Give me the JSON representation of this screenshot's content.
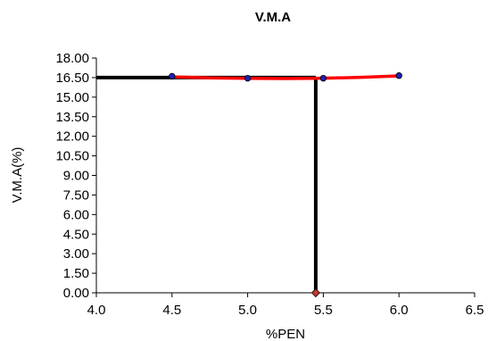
{
  "chart_data": {
    "type": "scatter",
    "title": "V.M.A",
    "xlabel": "%PEN",
    "ylabel": "V.M.A(%)",
    "xlim": [
      4.0,
      6.5
    ],
    "ylim": [
      0.0,
      18.0
    ],
    "x_ticks": [
      "4.0",
      "4.5",
      "5.0",
      "5.5",
      "6.0",
      "6.5"
    ],
    "y_ticks": [
      "0.00",
      "1.50",
      "3.00",
      "4.50",
      "6.00",
      "7.50",
      "9.00",
      "10.50",
      "12.00",
      "13.50",
      "15.00",
      "16.50",
      "18.00"
    ],
    "grid": false,
    "legend": "none",
    "series": [
      {
        "kind": "points",
        "marker": "circle",
        "color": "#1f1fb4",
        "x": [
          4.5,
          5.0,
          5.5,
          6.0
        ],
        "y": [
          16.6,
          16.45,
          16.45,
          16.65
        ]
      },
      {
        "kind": "fit-curve",
        "color": "#ff0000",
        "x": [
          4.5,
          4.75,
          5.0,
          5.25,
          5.5,
          5.75,
          6.0
        ],
        "y": [
          16.55,
          16.48,
          16.44,
          16.43,
          16.45,
          16.52,
          16.63
        ]
      },
      {
        "kind": "reference-line",
        "color": "#000000",
        "x": [
          4.0,
          5.45
        ],
        "y": [
          16.5,
          16.5
        ]
      },
      {
        "kind": "reference-line",
        "color": "#000000",
        "x": [
          5.45,
          5.45
        ],
        "y": [
          16.5,
          0.0
        ]
      },
      {
        "kind": "points",
        "marker": "diamond",
        "color": "#c0392b",
        "x": [
          5.45
        ],
        "y": [
          0.0
        ]
      }
    ]
  }
}
